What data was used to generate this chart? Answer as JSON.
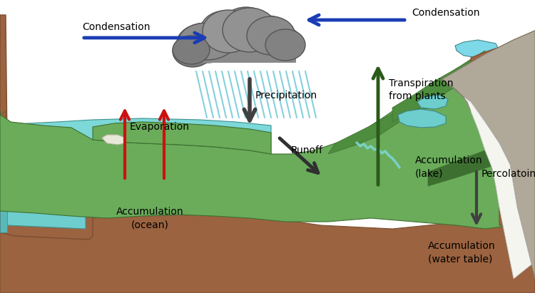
{
  "figsize": [
    7.5,
    4.11
  ],
  "dpi": 100,
  "bg_color": "white",
  "colors": {
    "ocean_top": "#7dd8d8",
    "ocean_mid": "#6ecece",
    "ocean_dark": "#5ab8b8",
    "ocean_front": "#5ec8c8",
    "earth_brown": "#9b6340",
    "earth_dark": "#7a4e30",
    "terrain_green": "#6aac5a",
    "terrain_mid": "#4e8c3e",
    "terrain_dark": "#3d7030",
    "mountain_grey": "#b0a898",
    "mountain_dark": "#888070",
    "snow_white": "#f0f0f0",
    "rain_blue": "#70c8d8",
    "cloud_grey": "#909090",
    "cloud_light": "#b8b8b8",
    "arrow_blue": "#1a3db5",
    "arrow_red": "#cc1111",
    "arrow_green": "#2a5a1a",
    "arrow_dark": "#303030",
    "lake_blue": "#6ecece",
    "water_table_blue": "#7dd8e8"
  },
  "labels": {
    "condensation_left": "Condensation",
    "condensation_right": "Condensation",
    "transpiration": "Transpiration\nfrom plants",
    "precipitation": "Precipitation",
    "evaporation": "Evaporation",
    "runoff": "Runoff",
    "acc_ocean": "Accumulation\n(ocean)",
    "acc_lake": "Accumulation\n(lake)",
    "percolation": "Percolatoin",
    "acc_water": "Accumulation\n(water table)"
  }
}
